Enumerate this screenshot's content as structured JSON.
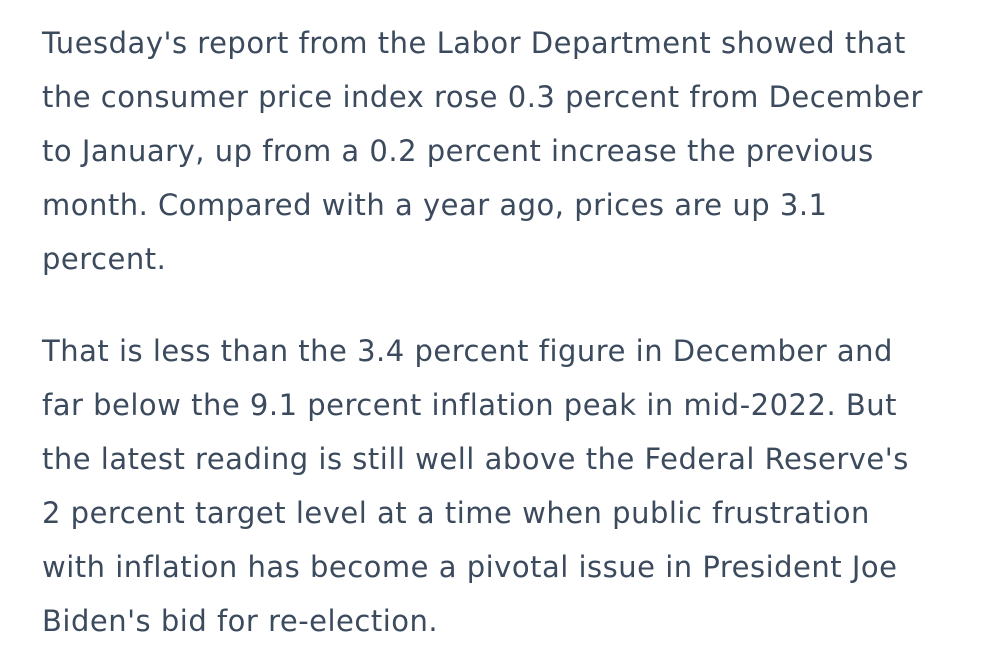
{
  "article": {
    "text_color": "#3c4a5e",
    "background_color": "#ffffff",
    "paragraphs": [
      {
        "text": "Tuesday's report from the Labor Department showed that the consumer price index rose 0.3 percent from December to January, up from a 0.2 percent increase the previous month. Compared with a year ago, prices are up 3.1 percent.",
        "lines": [
          "Tuesday's report from the Labor Department showed that",
          "the consumer price index rose 0.3 percent from December",
          "to January, up from a 0.2 percent increase the previous",
          "month. Compared with a year ago, prices are up 3.1",
          "percent."
        ]
      },
      {
        "text": "That is less than the 3.4 percent figure in December and far below the 9.1 percent inflation peak in mid-2022. But the latest reading is still well above the Federal Reserve's 2 percent target level at a time when public frustration with inflation has become a pivotal issue in President Joe Biden's bid for re-election.",
        "lines": [
          "That is less than the 3.4 percent figure in December and",
          "far below the 9.1 percent inflation peak in mid-2022. But",
          "the latest reading is still well above the Federal Reserve's",
          "2 percent target level at a time when public frustration",
          "with inflation has become a pivotal issue in President Joe",
          "Biden's bid for re-election."
        ]
      }
    ]
  }
}
